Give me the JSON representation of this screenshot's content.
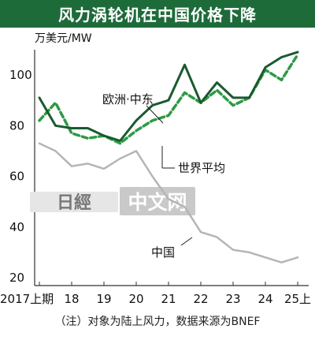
{
  "header": {
    "title": "风力涡轮机在中国价格下降"
  },
  "footnote": "（注）对象为陆上风力，数据来源为BNEF",
  "watermark": {
    "mark": "日經",
    "text": "中文网"
  },
  "colors": {
    "title_bg": "#1e6b3a",
    "europe": "#1a5a2e",
    "world": "#2e9a45",
    "china": "#b5b5b5",
    "axis": "#333333"
  },
  "chart_data": {
    "type": "line",
    "title": "风力涡轮机在中国价格下降",
    "ylabel": "万美元/MW",
    "xlabel": "",
    "ylim": [
      20,
      110
    ],
    "yticks": [
      20,
      40,
      60,
      80,
      100
    ],
    "xtick_labels": [
      "2017上期",
      "18",
      "19",
      "20",
      "21",
      "22",
      "23",
      "24",
      "25上"
    ],
    "xtick_positions": [
      0,
      1,
      2,
      3,
      4,
      5,
      6,
      7,
      8
    ],
    "grid": false,
    "legend": "inline labels",
    "series": [
      {
        "name": "欧洲·中东",
        "style": "solid",
        "x": [
          0,
          0.5,
          1,
          1.5,
          2,
          2.5,
          3,
          3.5,
          4,
          4.5,
          5,
          5.5,
          6,
          6.5,
          7,
          7.5,
          8
        ],
        "values": [
          91,
          80,
          79,
          79,
          76,
          74,
          82,
          88,
          90,
          104,
          89,
          97,
          91,
          91,
          103,
          107,
          109
        ]
      },
      {
        "name": "世界平均",
        "style": "dashed",
        "x": [
          0,
          0.5,
          1,
          1.5,
          2,
          2.5,
          3,
          3.5,
          4,
          4.5,
          5,
          5.5,
          6,
          6.5,
          7,
          7.5,
          8
        ],
        "values": [
          82,
          89,
          77,
          75,
          76,
          73,
          78,
          82,
          84,
          93,
          89,
          94,
          88,
          91,
          102,
          98,
          108
        ]
      },
      {
        "name": "中国",
        "style": "solid",
        "x": [
          0,
          0.5,
          1,
          1.5,
          2,
          2.5,
          3,
          3.5,
          4,
          4.5,
          5,
          5.5,
          6,
          6.5,
          7,
          7.5,
          8
        ],
        "values": [
          73,
          70,
          64,
          65,
          63,
          67,
          70,
          60,
          51,
          48,
          38,
          36,
          31,
          30,
          28,
          26,
          28
        ]
      }
    ]
  }
}
